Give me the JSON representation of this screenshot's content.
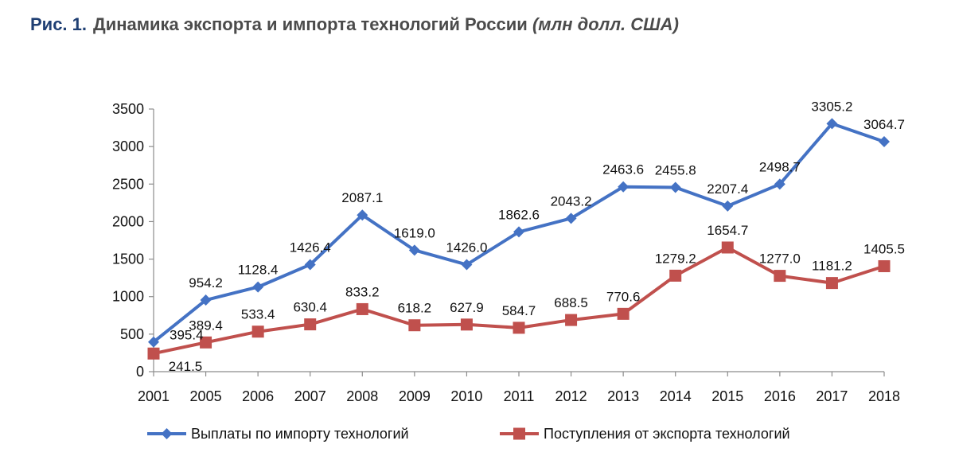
{
  "figure": {
    "number": "Рис. 1.",
    "title": "Динамика экспорта и импорта технологий России",
    "unit": "(млн долл. США)"
  },
  "chart_data": {
    "type": "line",
    "categories": [
      "2001",
      "2005",
      "2006",
      "2007",
      "2008",
      "2009",
      "2010",
      "2011",
      "2012",
      "2013",
      "2014",
      "2015",
      "2016",
      "2017",
      "2018"
    ],
    "ylim": [
      0,
      3500
    ],
    "yticks": [
      0,
      500,
      1000,
      1500,
      2000,
      2500,
      3000,
      3500
    ],
    "grid": false,
    "legend_position": "bottom",
    "series": [
      {
        "name": "Выплаты по импорту технологий",
        "color": "#4472c4",
        "marker": "diamond",
        "values": [
          395.4,
          954.2,
          1128.4,
          1426.4,
          2087.1,
          1619.0,
          1426.0,
          1862.6,
          2043.2,
          2463.6,
          2455.8,
          2207.4,
          2498.7,
          3305.2,
          3064.7
        ],
        "labels": [
          "395.4",
          "954.2",
          "1128.4",
          "1426.4",
          "2087.1",
          "1619.0",
          "1426.0",
          "1862.6",
          "2043.2",
          "2463.6",
          "2455.8",
          "2207.4",
          "2498.7",
          "3305.2",
          "3064.7"
        ]
      },
      {
        "name": "Поступления от экспорта технологий",
        "color": "#c0504d",
        "marker": "square",
        "values": [
          241.5,
          389.4,
          533.4,
          630.4,
          833.2,
          618.2,
          627.9,
          584.7,
          688.5,
          770.6,
          1279.2,
          1654.7,
          1277.0,
          1181.2,
          1405.5
        ],
        "labels": [
          "241.5",
          "389.4",
          "533.4",
          "630.4",
          "833.2",
          "618.2",
          "627.9",
          "584.7",
          "688.5",
          "770.6",
          "1279.2",
          "1654.7",
          "1277.0",
          "1181.2",
          "1405.5"
        ]
      }
    ]
  }
}
